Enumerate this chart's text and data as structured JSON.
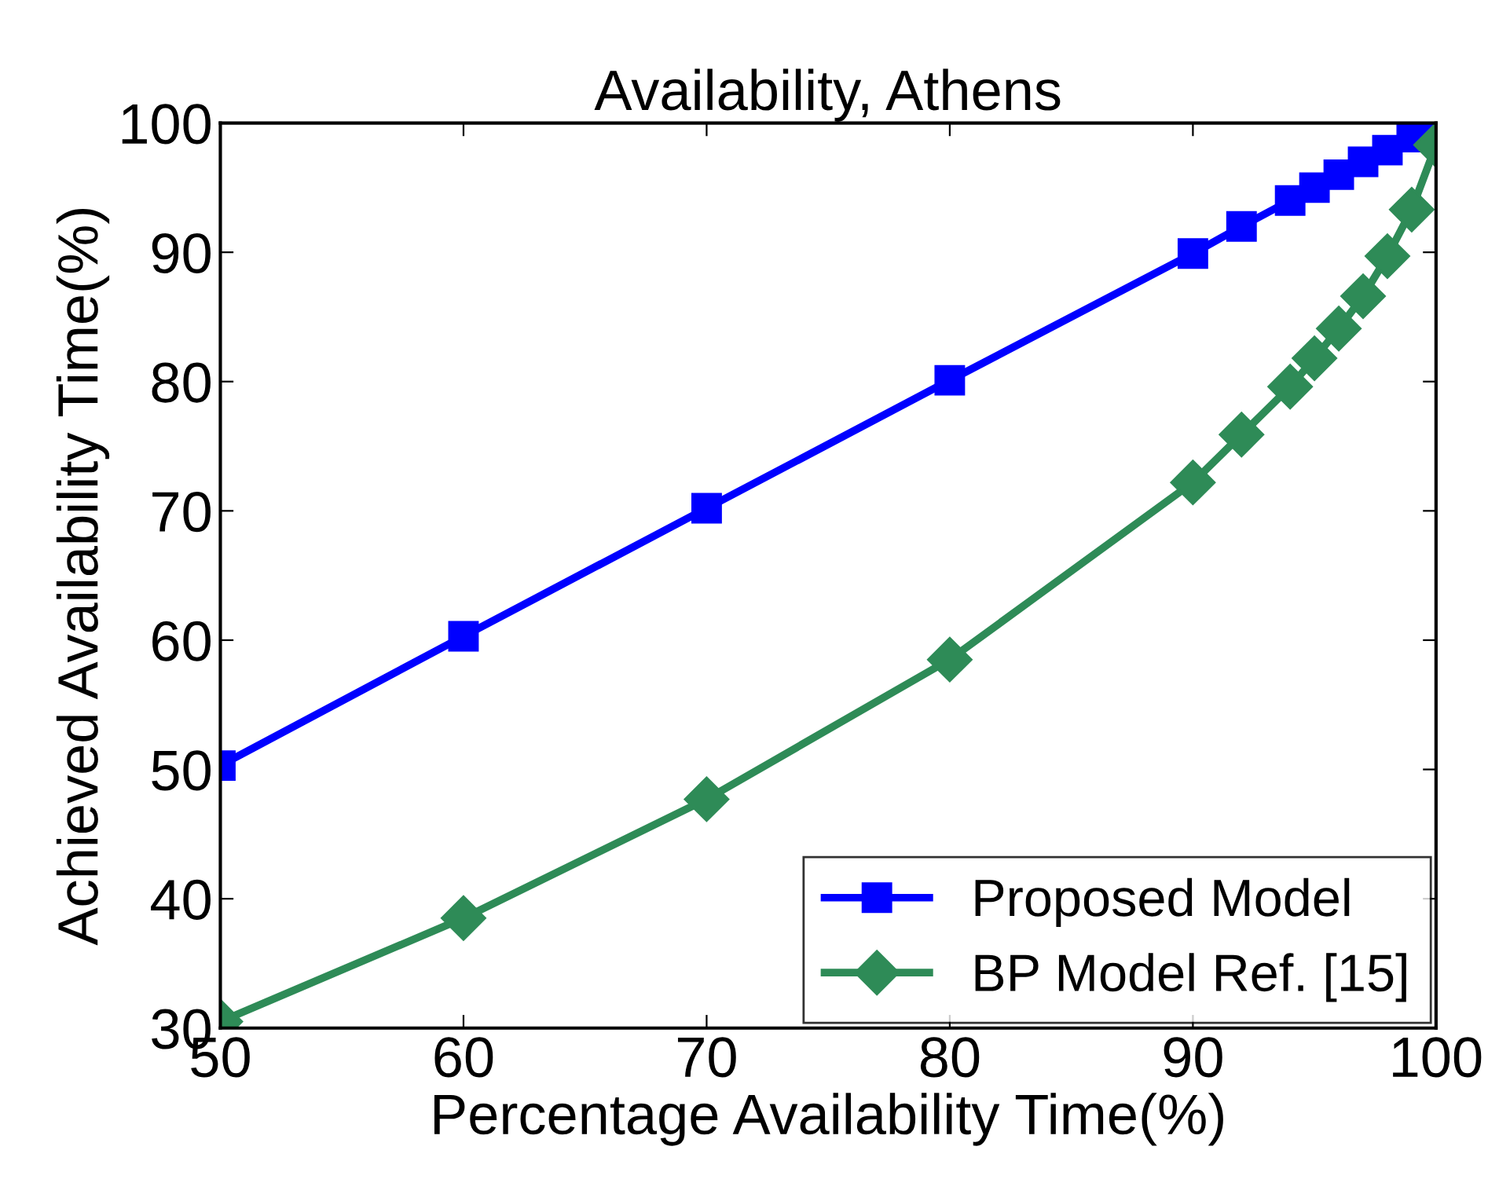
{
  "chart_data": {
    "type": "line",
    "title": "Availability, Athens",
    "xlabel": "Percentage Availability Time(%)",
    "ylabel": "Achieved Availability Time(%)",
    "x": [
      50,
      60,
      70,
      80,
      90,
      92,
      94,
      95,
      96,
      97,
      98,
      99,
      100
    ],
    "series": [
      {
        "name": "Proposed Model",
        "color": "#0000ff",
        "marker": "square",
        "values": [
          50.3,
          60.3,
          70.2,
          80.1,
          89.9,
          92.0,
          94.0,
          95.0,
          96.0,
          97.0,
          97.9,
          98.9,
          99.6
        ]
      },
      {
        "name": "BP Model Ref. [15]",
        "color": "#2e8b57",
        "marker": "diamond",
        "values": [
          30.5,
          38.5,
          47.7,
          58.5,
          72.2,
          75.9,
          79.6,
          81.8,
          84.1,
          86.6,
          89.7,
          93.3,
          98.3
        ]
      }
    ],
    "xlim": [
      50,
      100
    ],
    "xticks": [
      50,
      60,
      70,
      80,
      90,
      100
    ],
    "ylim": [
      30,
      100
    ],
    "yticks": [
      30,
      40,
      50,
      60,
      70,
      80,
      90,
      100
    ],
    "grid": false,
    "legend": "bottom right",
    "line_style": "solid"
  }
}
